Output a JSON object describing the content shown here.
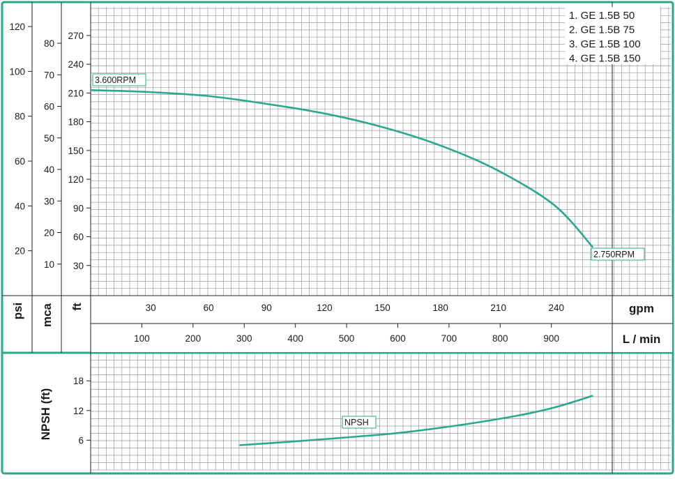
{
  "colors": {
    "frame": "#29a98b",
    "curve": "#2aa88e",
    "grid": "#9a9a9a",
    "grid_major": "#7a7a7a",
    "text": "#1a1a1a"
  },
  "chart_data": [
    {
      "type": "line",
      "title": "",
      "grid": true,
      "legend_placement": "top-right",
      "legend": [
        "1. GE 1.5B 50",
        "2. GE 1.5B 75",
        "3. GE 1.5B 100",
        "4. GE 1.5B 150"
      ],
      "x_axes": [
        {
          "unit": "gpm",
          "range": [
            0,
            270
          ],
          "ticks": [
            30,
            60,
            90,
            120,
            150,
            180,
            210,
            240
          ]
        },
        {
          "unit": "L / min",
          "range": [
            0,
            1022
          ],
          "ticks": [
            100,
            200,
            300,
            400,
            500,
            600,
            700,
            800,
            900
          ]
        }
      ],
      "y_axes": [
        {
          "unit": "psi",
          "range": [
            0,
            125
          ],
          "ticks": [
            20,
            40,
            60,
            80,
            100,
            120
          ]
        },
        {
          "unit": "mca",
          "range": [
            0,
            87.9
          ],
          "ticks": [
            10,
            20,
            30,
            40,
            50,
            60,
            70,
            80
          ]
        },
        {
          "unit": "ft",
          "range": [
            0,
            288.6
          ],
          "ticks": [
            30,
            60,
            90,
            120,
            150,
            180,
            210,
            240,
            270
          ]
        }
      ],
      "series": [
        {
          "x_unit": "gpm",
          "y_unit": "ft",
          "points": [
            [
              0,
              213
            ],
            [
              30,
              211
            ],
            [
              60,
              207
            ],
            [
              90,
              199
            ],
            [
              120,
              189
            ],
            [
              150,
              175
            ],
            [
              180,
              156
            ],
            [
              210,
              130
            ],
            [
              240,
              93
            ],
            [
              260,
              49
            ]
          ]
        }
      ],
      "annotations": [
        {
          "text": "3.600RPM",
          "anchor": "curve-start"
        },
        {
          "text": "2.750RPM",
          "anchor": "curve-end"
        }
      ]
    },
    {
      "type": "line",
      "title": "",
      "grid": true,
      "y_axis": {
        "unit": "NPSH (ft)",
        "range": [
          0,
          22.5
        ],
        "ticks": [
          6,
          12,
          18
        ]
      },
      "x_axis": {
        "unit": "gpm",
        "range": [
          0,
          270
        ]
      },
      "series": [
        {
          "name": "NPSH",
          "points": [
            [
              77,
              5
            ],
            [
              100,
              5.6
            ],
            [
              130,
              6.5
            ],
            [
              160,
              7.5
            ],
            [
              190,
              9
            ],
            [
              220,
              10.9
            ],
            [
              240,
              12.6
            ],
            [
              260,
              15
            ]
          ]
        }
      ]
    }
  ]
}
